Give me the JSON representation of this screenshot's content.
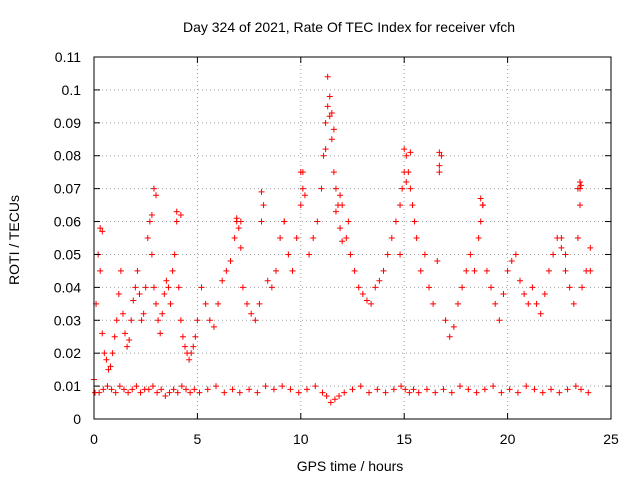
{
  "chart_data": {
    "type": "scatter",
    "title": "Day 324 of 2021, Rate Of TEC Index for receiver vfch",
    "xlabel": "GPS time / hours",
    "ylabel": "ROTI / TECUs",
    "xlim": [
      0,
      25
    ],
    "ylim": [
      0,
      0.11
    ],
    "xticks": [
      0,
      5,
      10,
      15,
      20,
      25
    ],
    "xtick_labels": [
      "0",
      "5",
      "10",
      "15",
      "20",
      "25"
    ],
    "yticks": [
      0,
      0.01,
      0.02,
      0.03,
      0.04,
      0.05,
      0.06,
      0.07,
      0.08,
      0.09,
      0.1,
      0.11
    ],
    "ytick_labels": [
      "0",
      "0.01",
      "0.02",
      "0.03",
      "0.04",
      "0.05",
      "0.06",
      "0.07",
      "0.08",
      "0.09",
      "0.1",
      "0.11"
    ],
    "grid": true,
    "marker": "+",
    "color": "#ff0000",
    "series": [
      {
        "name": "ROTI",
        "x": [
          0.0,
          0.1,
          0.2,
          0.3,
          0.4,
          0.5,
          0.6,
          0.7,
          0.8,
          0.9,
          1.0,
          1.1,
          1.2,
          1.3,
          1.4,
          1.5,
          1.6,
          1.7,
          1.8,
          1.9,
          2.0,
          2.1,
          2.2,
          2.3,
          2.4,
          2.5,
          2.6,
          2.7,
          2.8,
          2.9,
          3.0,
          3.1,
          3.2,
          3.3,
          3.4,
          3.5,
          3.6,
          3.7,
          3.8,
          3.9,
          4.0,
          4.1,
          4.2,
          4.3,
          4.4,
          4.5,
          4.6,
          4.7,
          4.8,
          4.9,
          5.0,
          5.2,
          5.4,
          5.6,
          5.8,
          6.0,
          6.2,
          6.4,
          6.6,
          6.8,
          6.9,
          7.0,
          7.1,
          7.2,
          7.4,
          7.6,
          7.8,
          8.0,
          8.1,
          8.2,
          8.4,
          8.6,
          8.8,
          9.0,
          9.2,
          9.4,
          9.6,
          9.8,
          10.0,
          10.1,
          10.2,
          10.4,
          10.6,
          10.8,
          11.0,
          11.1,
          11.2,
          11.3,
          11.4,
          11.5,
          11.6,
          11.7,
          11.8,
          11.9,
          12.0,
          12.2,
          12.4,
          12.6,
          12.8,
          13.0,
          13.2,
          13.4,
          13.6,
          13.8,
          14.0,
          14.2,
          14.4,
          14.6,
          14.8,
          14.9,
          15.0,
          15.1,
          15.2,
          15.3,
          15.4,
          15.5,
          15.6,
          15.8,
          16.0,
          16.2,
          16.4,
          16.6,
          16.7,
          16.8,
          17.0,
          17.2,
          17.4,
          17.6,
          17.8,
          18.0,
          18.2,
          18.4,
          18.6,
          18.7,
          18.8,
          19.0,
          19.2,
          19.4,
          19.6,
          19.8,
          20.0,
          20.2,
          20.4,
          20.6,
          20.8,
          21.0,
          21.2,
          21.4,
          21.6,
          21.8,
          22.0,
          22.2,
          22.4,
          22.6,
          22.8,
          23.0,
          23.2,
          23.4,
          23.5,
          23.6,
          23.8,
          24.0,
          0.05,
          0.25,
          0.45,
          0.65,
          0.85,
          1.05,
          1.25,
          1.45,
          1.65,
          1.85,
          2.05,
          2.25,
          2.45,
          2.65,
          2.85,
          3.05,
          3.25,
          3.45,
          3.65,
          3.85,
          4.05,
          4.25,
          4.45,
          4.65,
          4.85,
          5.1,
          5.5,
          5.9,
          6.3,
          6.7,
          7.05,
          7.5,
          7.9,
          8.3,
          8.7,
          9.1,
          9.5,
          9.9,
          10.3,
          10.7,
          11.05,
          11.25,
          11.45,
          11.65,
          11.85,
          12.1,
          12.5,
          12.9,
          13.3,
          13.7,
          14.1,
          14.5,
          14.85,
          15.05,
          15.25,
          15.45,
          15.7,
          16.1,
          16.5,
          16.9,
          17.3,
          17.7,
          18.1,
          18.5,
          18.9,
          19.3,
          19.7,
          20.1,
          20.5,
          20.9,
          21.3,
          21.7,
          22.1,
          22.5,
          22.9,
          23.3,
          23.55,
          23.9,
          11.3,
          11.4,
          11.5,
          11.6,
          11.2,
          10.0,
          11.7,
          11.9,
          12.0,
          15.0,
          15.3,
          16.7,
          16.7,
          15.1,
          2.9,
          3.0,
          23.5,
          23.55,
          23.5,
          4.0,
          6.9,
          7.1,
          8.1,
          9.2,
          10.1,
          12.3,
          14.8,
          18.7,
          18.8,
          22.6,
          22.8,
          23.4,
          24.0,
          0.3,
          0.4,
          2.8,
          4.2
        ],
        "y": [
          0.012,
          0.035,
          0.05,
          0.045,
          0.026,
          0.02,
          0.018,
          0.015,
          0.016,
          0.02,
          0.025,
          0.03,
          0.038,
          0.045,
          0.032,
          0.026,
          0.022,
          0.024,
          0.03,
          0.036,
          0.04,
          0.045,
          0.038,
          0.03,
          0.032,
          0.04,
          0.055,
          0.06,
          0.05,
          0.04,
          0.035,
          0.03,
          0.026,
          0.032,
          0.038,
          0.042,
          0.04,
          0.035,
          0.045,
          0.05,
          0.06,
          0.04,
          0.03,
          0.025,
          0.022,
          0.02,
          0.018,
          0.02,
          0.022,
          0.025,
          0.03,
          0.04,
          0.035,
          0.03,
          0.028,
          0.035,
          0.042,
          0.045,
          0.048,
          0.055,
          0.06,
          0.058,
          0.052,
          0.04,
          0.035,
          0.032,
          0.03,
          0.035,
          0.06,
          0.065,
          0.042,
          0.04,
          0.045,
          0.055,
          0.06,
          0.05,
          0.045,
          0.055,
          0.065,
          0.075,
          0.068,
          0.05,
          0.055,
          0.06,
          0.07,
          0.08,
          0.09,
          0.095,
          0.092,
          0.085,
          0.075,
          0.07,
          0.065,
          0.068,
          0.065,
          0.055,
          0.05,
          0.045,
          0.04,
          0.038,
          0.036,
          0.035,
          0.04,
          0.042,
          0.045,
          0.05,
          0.055,
          0.06,
          0.065,
          0.07,
          0.075,
          0.08,
          0.075,
          0.07,
          0.065,
          0.06,
          0.055,
          0.045,
          0.05,
          0.04,
          0.035,
          0.048,
          0.075,
          0.08,
          0.03,
          0.025,
          0.028,
          0.035,
          0.04,
          0.045,
          0.05,
          0.045,
          0.055,
          0.06,
          0.065,
          0.045,
          0.04,
          0.035,
          0.03,
          0.038,
          0.045,
          0.048,
          0.05,
          0.042,
          0.038,
          0.035,
          0.04,
          0.035,
          0.032,
          0.038,
          0.045,
          0.05,
          0.055,
          0.052,
          0.045,
          0.04,
          0.035,
          0.07,
          0.065,
          0.04,
          0.045,
          0.045,
          0.008,
          0.008,
          0.009,
          0.01,
          0.009,
          0.008,
          0.01,
          0.009,
          0.008,
          0.009,
          0.01,
          0.008,
          0.009,
          0.009,
          0.01,
          0.008,
          0.009,
          0.007,
          0.008,
          0.009,
          0.008,
          0.01,
          0.009,
          0.008,
          0.009,
          0.008,
          0.009,
          0.01,
          0.008,
          0.009,
          0.008,
          0.009,
          0.008,
          0.01,
          0.009,
          0.01,
          0.009,
          0.008,
          0.009,
          0.01,
          0.008,
          0.007,
          0.005,
          0.006,
          0.007,
          0.008,
          0.009,
          0.01,
          0.008,
          0.009,
          0.008,
          0.009,
          0.01,
          0.009,
          0.008,
          0.009,
          0.008,
          0.009,
          0.008,
          0.009,
          0.008,
          0.01,
          0.009,
          0.008,
          0.009,
          0.01,
          0.008,
          0.009,
          0.008,
          0.01,
          0.009,
          0.008,
          0.009,
          0.008,
          0.009,
          0.01,
          0.009,
          0.008,
          0.104,
          0.098,
          0.093,
          0.088,
          0.082,
          0.075,
          0.063,
          0.058,
          0.054,
          0.082,
          0.081,
          0.081,
          0.077,
          0.072,
          0.07,
          0.068,
          0.072,
          0.071,
          0.07,
          0.063,
          0.061,
          0.06,
          0.069,
          0.06,
          0.07,
          0.06,
          0.05,
          0.067,
          0.065,
          0.055,
          0.05,
          0.055,
          0.052,
          0.058,
          0.057,
          0.062,
          0.062
        ]
      }
    ]
  }
}
